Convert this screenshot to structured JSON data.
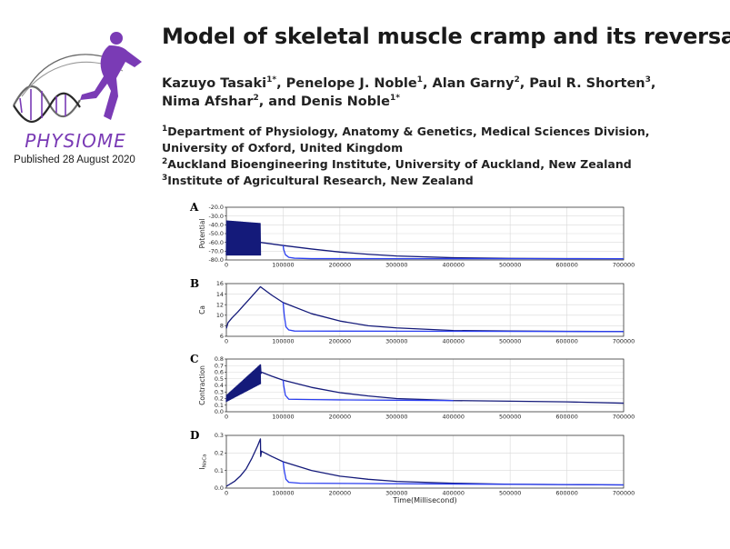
{
  "header": {
    "logo_word": "PHYSIOME",
    "published": "Published 28 August 2020",
    "title": "Model of skeletal muscle cramp and its reversal",
    "authors": [
      {
        "name": "Kazuyo Tasaki",
        "sup": "1*",
        "sep": ", "
      },
      {
        "name": "Penelope J. Noble",
        "sup": "1",
        "sep": ", "
      },
      {
        "name": "Alan Garny",
        "sup": "2",
        "sep": ", "
      },
      {
        "name": "Paul R. Shorten",
        "sup": "3",
        "sep": ", "
      },
      {
        "name": "Nima Afshar",
        "sup": "2",
        "sep": ", and "
      },
      {
        "name": "Denis Noble",
        "sup": "1*",
        "sep": ""
      }
    ],
    "affiliations": [
      {
        "sup": "1",
        "text": "Department of Physiology, Anatomy & Genetics, Medical Sciences Division, University of Oxford, United Kingdom"
      },
      {
        "sup": "2",
        "text": "Auckland Bioengineering Institute, University of Auckland, New Zealand"
      },
      {
        "sup": "3",
        "text": "Institute of Agricultural Research, New Zealand"
      }
    ]
  },
  "colors": {
    "logo_purple": "#7a3bb5",
    "dark_series": "#141a7a",
    "light_series": "#2b3ff0"
  },
  "chart_data": [
    {
      "panel": "A",
      "type": "line",
      "ylabel": "Potential",
      "xlabel": "",
      "xlim": [
        0,
        700000
      ],
      "ylim": [
        -80,
        -20
      ],
      "xticks": [
        0,
        100000,
        200000,
        300000,
        400000,
        500000,
        600000,
        700000
      ],
      "yticks": [
        -80,
        -70,
        -60,
        -50,
        -40,
        -30,
        -20
      ],
      "oscillation": {
        "x_range": [
          0,
          60000
        ],
        "low": -75,
        "high": [
          -35,
          -38
        ]
      },
      "series": [
        {
          "color": "dark",
          "x": [
            60000,
            100000,
            150000,
            200000,
            250000,
            300000,
            400000,
            500000,
            600000,
            700000
          ],
          "y": [
            -60,
            -63.5,
            -67.5,
            -71,
            -73.5,
            -75.5,
            -77.5,
            -78.2,
            -78.5,
            -78.6
          ]
        },
        {
          "color": "light",
          "x": [
            100000,
            101000,
            104000,
            110000,
            120000,
            150000,
            700000
          ],
          "y": [
            -63.5,
            -68,
            -74,
            -77,
            -78,
            -78.5,
            -78.6
          ]
        }
      ]
    },
    {
      "panel": "B",
      "type": "line",
      "ylabel": "Ca",
      "xlabel": "",
      "xlim": [
        0,
        700000
      ],
      "ylim": [
        6,
        16
      ],
      "xticks": [
        0,
        100000,
        200000,
        300000,
        400000,
        500000,
        600000,
        700000
      ],
      "yticks": [
        6,
        8,
        10,
        12,
        14,
        16
      ],
      "series": [
        {
          "color": "dark",
          "x": [
            0,
            3000,
            10000,
            20000,
            30000,
            40000,
            50000,
            60000,
            80000,
            100000,
            150000,
            200000,
            250000,
            300000,
            400000,
            500000,
            600000,
            700000
          ],
          "y": [
            7.5,
            8.6,
            9.5,
            10.6,
            11.8,
            13.0,
            14.2,
            15.4,
            13.8,
            12.4,
            10.3,
            8.9,
            8.0,
            7.6,
            7.1,
            7.0,
            6.95,
            6.9
          ]
        },
        {
          "color": "light",
          "x": [
            100000,
            102000,
            105000,
            110000,
            120000,
            700000
          ],
          "y": [
            12.4,
            10.0,
            7.8,
            7.2,
            7.0,
            6.9
          ]
        }
      ]
    },
    {
      "panel": "C",
      "type": "line",
      "ylabel": "Contraction",
      "xlabel": "",
      "xlim": [
        0,
        700000
      ],
      "ylim": [
        0.0,
        0.8
      ],
      "xticks": [
        0,
        100000,
        200000,
        300000,
        400000,
        500000,
        600000,
        700000
      ],
      "yticks": [
        0.0,
        0.1,
        0.2,
        0.3,
        0.4,
        0.5,
        0.6,
        0.7,
        0.8
      ],
      "oscillation": {
        "x_range": [
          0,
          60000
        ],
        "low": [
          0.15,
          0.42
        ],
        "high": [
          0.25,
          0.72
        ]
      },
      "series": [
        {
          "color": "dark",
          "x": [
            60000,
            61000,
            62000,
            80000,
            100000,
            150000,
            200000,
            250000,
            300000,
            400000,
            500000,
            600000,
            700000
          ],
          "y": [
            0.72,
            0.58,
            0.6,
            0.54,
            0.48,
            0.37,
            0.29,
            0.24,
            0.2,
            0.17,
            0.16,
            0.15,
            0.13
          ]
        },
        {
          "color": "light",
          "x": [
            100000,
            101000,
            104000,
            110000,
            150000,
            200000,
            300000,
            400000
          ],
          "y": [
            0.48,
            0.4,
            0.25,
            0.19,
            0.185,
            0.18,
            0.175,
            0.17
          ]
        }
      ]
    },
    {
      "panel": "D",
      "type": "line",
      "ylabel": "I_NaCa",
      "xlabel": "Time(Millisecond)",
      "xlim": [
        0,
        700000
      ],
      "ylim": [
        0.0,
        0.3
      ],
      "xticks": [
        0,
        100000,
        200000,
        300000,
        400000,
        500000,
        600000,
        700000
      ],
      "yticks": [
        0.0,
        0.1,
        0.2,
        0.3
      ],
      "series": [
        {
          "color": "dark",
          "x": [
            0,
            5000,
            15000,
            25000,
            35000,
            45000,
            55000,
            60000,
            60500,
            62000,
            80000,
            100000,
            150000,
            200000,
            250000,
            300000,
            400000,
            500000,
            600000,
            700000
          ],
          "y": [
            0.01,
            0.02,
            0.04,
            0.07,
            0.11,
            0.17,
            0.24,
            0.28,
            0.18,
            0.21,
            0.18,
            0.15,
            0.1,
            0.068,
            0.05,
            0.038,
            0.028,
            0.022,
            0.02,
            0.018
          ]
        },
        {
          "color": "light",
          "x": [
            100000,
            102000,
            105000,
            110000,
            130000,
            700000
          ],
          "y": [
            0.15,
            0.1,
            0.05,
            0.033,
            0.028,
            0.018
          ]
        }
      ]
    }
  ]
}
